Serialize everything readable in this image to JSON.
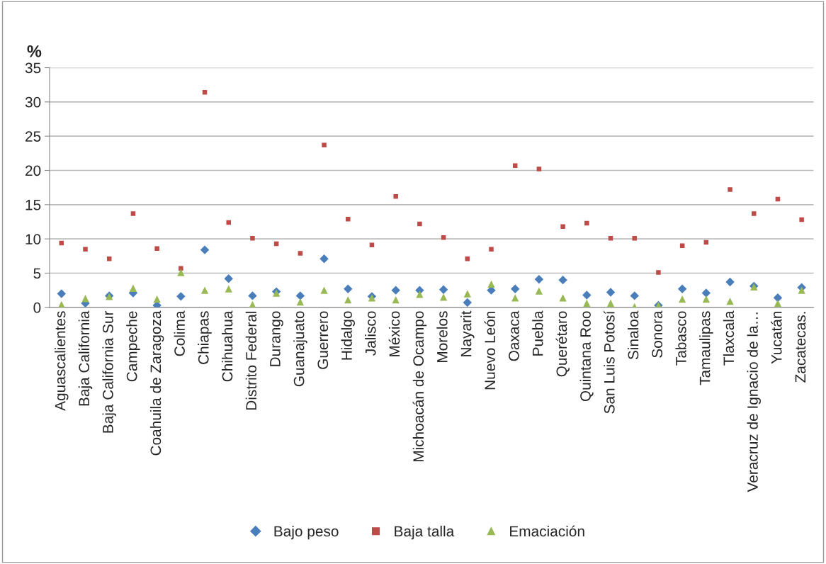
{
  "chart_data": {
    "type": "scatter",
    "ylabel": "%",
    "categories": [
      "Aguascalientes",
      "Baja California",
      "Baja California Sur",
      "Campeche",
      "Coahuila de Zaragoza",
      "Colima",
      "Chiapas",
      "Chihuahua",
      "Distrito Federal",
      "Durango",
      "Guanajuato",
      "Guerrero",
      "Hidalgo",
      "Jalisco",
      "México",
      "Michoacán de Ocampo",
      "Morelos",
      "Nayarit",
      "Nuevo León",
      "Oaxaca",
      "Puebla",
      "Querétaro",
      "Quintana Roo",
      "San Luis Potosí",
      "Sinaloa",
      "Sonora",
      "Tabasco",
      "Tamaulipas",
      "Tlaxcala",
      "Veracruz de Ignacio de la…",
      "Yucatán",
      "Zacatecas."
    ],
    "series": [
      {
        "name": "Bajo peso",
        "color": "#4a7ebb",
        "marker": "diamond",
        "values": [
          2.0,
          0.6,
          1.7,
          2.1,
          0.3,
          1.6,
          8.4,
          4.2,
          1.7,
          2.3,
          1.7,
          7.1,
          2.7,
          1.6,
          2.5,
          2.5,
          2.6,
          0.7,
          2.5,
          2.7,
          4.1,
          4.0,
          1.8,
          2.2,
          1.7,
          0.3,
          2.7,
          2.1,
          3.7,
          3.1,
          1.4,
          2.9
        ]
      },
      {
        "name": "Baja talla",
        "color": "#be4b48",
        "marker": "square",
        "values": [
          9.4,
          8.5,
          7.1,
          13.7,
          8.6,
          5.7,
          31.4,
          12.4,
          10.1,
          9.3,
          7.9,
          23.7,
          12.9,
          9.1,
          16.2,
          12.2,
          10.2,
          7.1,
          8.5,
          20.7,
          20.2,
          11.8,
          12.3,
          10.1,
          10.1,
          5.1,
          9.0,
          9.5,
          17.2,
          13.7,
          15.8,
          12.8
        ]
      },
      {
        "name": "Emaciación",
        "color": "#98b954",
        "marker": "triangle",
        "values": [
          0.4,
          1.3,
          1.6,
          2.8,
          1.2,
          5.1,
          2.5,
          2.7,
          0.4,
          2.1,
          0.8,
          2.5,
          1.1,
          1.4,
          1.1,
          1.9,
          1.5,
          2.0,
          3.4,
          1.4,
          2.4,
          1.4,
          0.6,
          0.6,
          0.1,
          0.3,
          1.2,
          1.2,
          0.9,
          3.0,
          0.6,
          2.5
        ]
      }
    ],
    "ylim": [
      0,
      35
    ],
    "yticks": [
      0,
      5,
      10,
      15,
      20,
      25,
      30,
      35
    ],
    "grid": "y",
    "legend": "bottom"
  }
}
